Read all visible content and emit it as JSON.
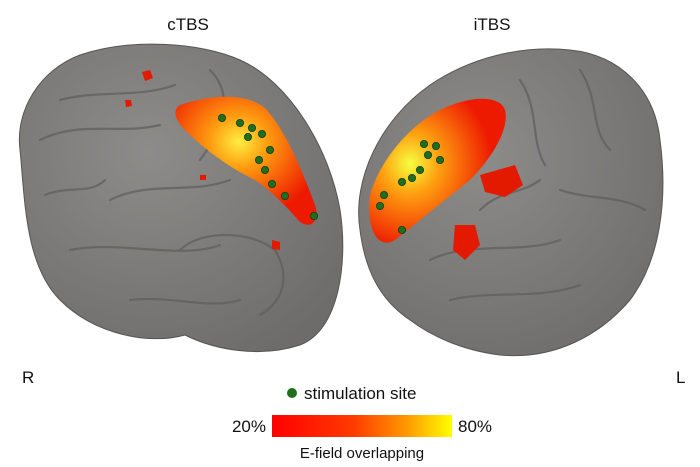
{
  "panels": [
    {
      "title": "cTBS",
      "side": "R"
    },
    {
      "title": "iTBS",
      "side": "L"
    }
  ],
  "legend": {
    "marker_label": "stimulation site"
  },
  "colorbar": {
    "min_label": "20%",
    "max_label": "80%",
    "title": "E-field overlapping"
  }
}
